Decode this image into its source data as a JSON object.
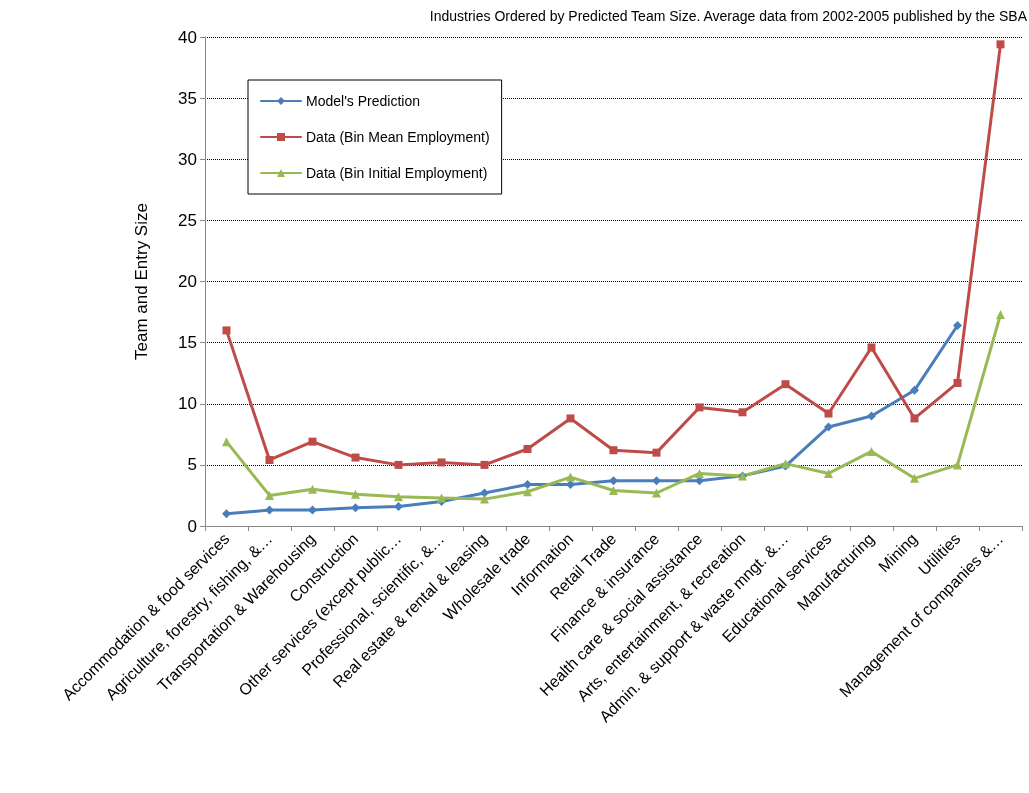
{
  "chart_data": {
    "type": "line",
    "title": "Industries Ordered by Predicted Team Size. Average data from 2002-2005 published by the SBA",
    "ylabel": "Team and Entry Size",
    "categories": [
      "Accommodation & food services",
      "Agriculture, forestry, fishing, &…",
      "Transportation & Warehousing",
      "Construction",
      "Other services (except public…",
      "Professional, scientific, &…",
      "Real estate & rental & leasing",
      "Wholesale trade",
      "Information",
      "Retail Trade",
      "Finance & insurance",
      "Health care & social assistance",
      "Arts, entertainment, & recreation",
      "Admin. & support & waste mngt. &…",
      "Educational services",
      "Manufacturing",
      "Mining",
      "Utilities",
      "Management of companies &…"
    ],
    "series": [
      {
        "name": "Model's Prediction",
        "color": "#4a7ebb",
        "marker": "diamond",
        "values": [
          1.0,
          1.3,
          1.3,
          1.5,
          1.6,
          2.0,
          2.7,
          3.4,
          3.4,
          3.7,
          3.7,
          3.7,
          4.1,
          4.9,
          8.1,
          9.0,
          11.1,
          16.4,
          null
        ]
      },
      {
        "name": "Data (Bin Mean Employment)",
        "color": "#be4b48",
        "marker": "square",
        "values": [
          16.0,
          5.4,
          6.9,
          5.6,
          5.0,
          5.2,
          5.0,
          6.3,
          8.8,
          6.2,
          6.0,
          9.7,
          9.3,
          11.6,
          9.2,
          14.6,
          8.8,
          11.7,
          39.4
        ]
      },
      {
        "name": "Data (Bin Initial Employment)",
        "color": "#98b954",
        "marker": "triangle",
        "values": [
          6.9,
          2.5,
          3.0,
          2.6,
          2.4,
          2.3,
          2.2,
          2.8,
          4.0,
          2.9,
          2.7,
          4.3,
          4.1,
          5.1,
          4.3,
          6.1,
          3.9,
          5.0,
          17.3
        ]
      }
    ],
    "ylim": [
      0,
      40
    ],
    "yticks": [
      0,
      5,
      10,
      15,
      20,
      25,
      30,
      35,
      40
    ],
    "grid": "y",
    "legend": "top left",
    "line_style": "solid"
  }
}
